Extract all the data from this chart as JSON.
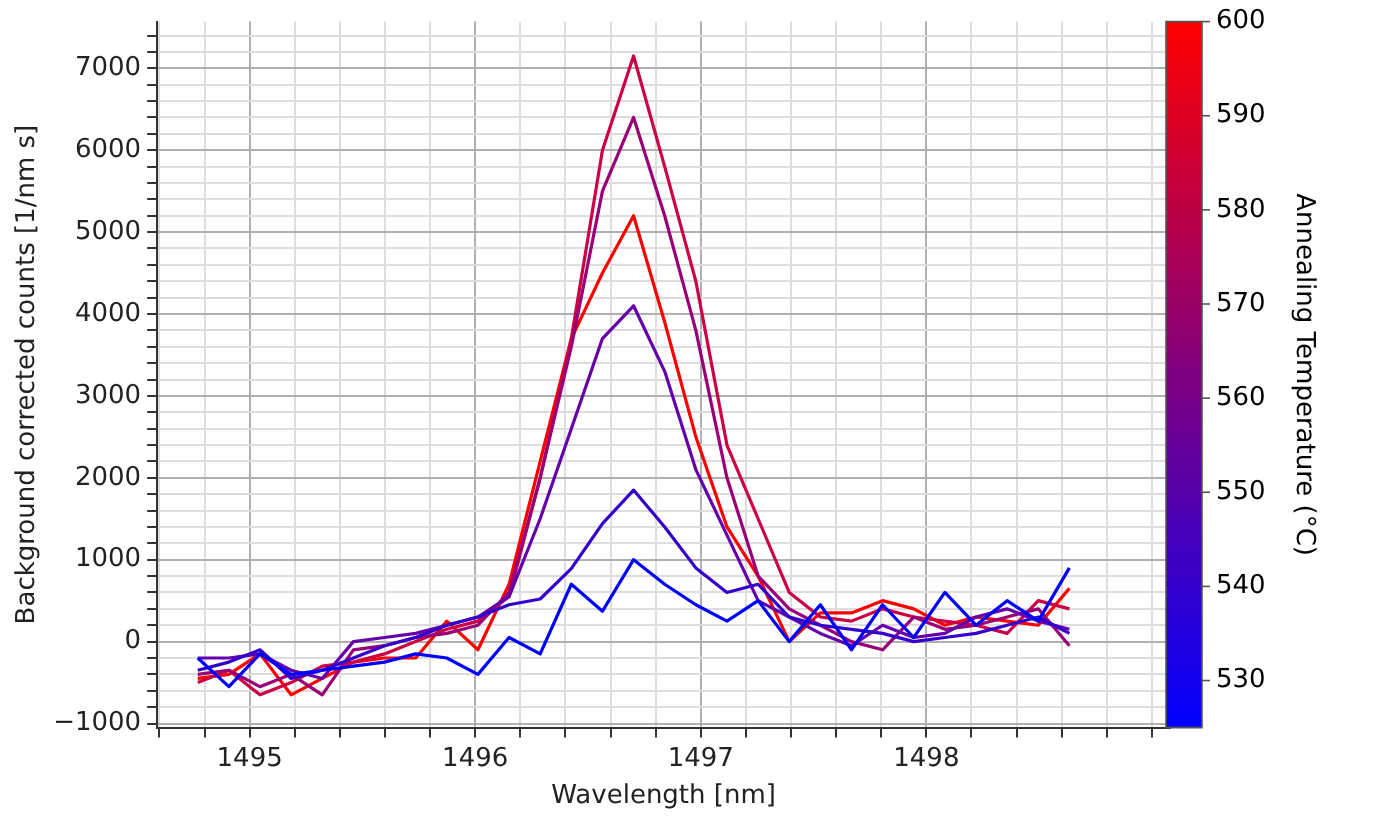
{
  "chart_data": {
    "type": "line",
    "xlabel": "Wavelength [nm]",
    "ylabel": "Background corrected counts [1/nm s]",
    "clabel": "Annealing Temperature (°C)",
    "x": [
      1494.77,
      1494.908,
      1495.046,
      1495.184,
      1495.322,
      1495.46,
      1495.598,
      1495.736,
      1495.874,
      1496.012,
      1496.15,
      1496.288,
      1496.426,
      1496.564,
      1496.702,
      1496.84,
      1496.978,
      1497.116,
      1497.254,
      1497.392,
      1497.53,
      1497.668,
      1497.806,
      1497.944,
      1498.082,
      1498.22,
      1498.358,
      1498.496,
      1498.634
    ],
    "series": [
      {
        "color": "#0000ff",
        "values": [
          -200,
          -550,
          -150,
          -400,
          -350,
          -300,
          -250,
          -150,
          -200,
          -400,
          50,
          -150,
          700,
          370,
          1000,
          700,
          450,
          250,
          500,
          0,
          450,
          -100,
          450,
          50,
          600,
          200,
          500,
          250,
          900
        ]
      },
      {
        "color": "#3300cc",
        "values": [
          -350,
          -250,
          -100,
          -450,
          -350,
          -200,
          -50,
          50,
          200,
          300,
          450,
          520,
          890,
          1440,
          1850,
          1400,
          900,
          600,
          700,
          300,
          200,
          150,
          100,
          0,
          50,
          100,
          200,
          300,
          100
        ]
      },
      {
        "color": "#6600aa",
        "values": [
          -200,
          -200,
          -150,
          -350,
          -450,
          0,
          50,
          100,
          200,
          300,
          550,
          1500,
          2600,
          3700,
          4100,
          3300,
          2100,
          1300,
          500,
          300,
          100,
          -50,
          200,
          50,
          100,
          300,
          400,
          250,
          150
        ]
      },
      {
        "color": "#990077",
        "values": [
          -400,
          -350,
          -550,
          -400,
          -650,
          -100,
          -50,
          50,
          100,
          200,
          600,
          2000,
          3600,
          5500,
          6400,
          5200,
          3800,
          2000,
          800,
          400,
          200,
          0,
          -100,
          300,
          150,
          200,
          300,
          400,
          -50
        ]
      },
      {
        "color": "#cc0044",
        "values": [
          -500,
          -350,
          -650,
          -500,
          -300,
          -250,
          -150,
          0,
          150,
          250,
          550,
          2000,
          3700,
          6000,
          7150,
          5800,
          4400,
          2400,
          1500,
          600,
          300,
          250,
          400,
          300,
          250,
          200,
          100,
          500,
          400
        ]
      },
      {
        "color": "#ff0000",
        "values": [
          -450,
          -400,
          -150,
          -650,
          -450,
          -250,
          -200,
          -200,
          250,
          -100,
          700,
          2200,
          3700,
          4500,
          5200,
          3900,
          2500,
          1400,
          800,
          0,
          350,
          350,
          500,
          400,
          200,
          300,
          250,
          200,
          650
        ]
      }
    ],
    "xlim": [
      1494.59,
      1499.08
    ],
    "xticks": [
      {
        "value": 1494.6,
        "label": null
      },
      {
        "value": 1494.8,
        "label": null
      },
      1495,
      {
        "value": 1495.2,
        "label": null
      },
      {
        "value": 1495.4,
        "label": null
      },
      {
        "value": 1495.6,
        "label": null
      },
      {
        "value": 1495.8,
        "label": null
      },
      1496,
      {
        "value": 1496.2,
        "label": null
      },
      {
        "value": 1496.4,
        "label": null
      },
      {
        "value": 1496.6,
        "label": null
      },
      {
        "value": 1496.8,
        "label": null
      },
      1497,
      {
        "value": 1497.2,
        "label": null
      },
      {
        "value": 1497.4,
        "label": null
      },
      {
        "value": 1497.6,
        "label": null
      },
      {
        "value": 1497.8,
        "label": null
      },
      1498,
      {
        "value": 1498.2,
        "label": null
      },
      {
        "value": 1498.4,
        "label": null
      },
      {
        "value": 1498.6,
        "label": null
      },
      {
        "value": 1498.8,
        "label": null
      },
      {
        "value": 1499,
        "label": null
      }
    ],
    "ylim": [
      -1050,
      7570
    ],
    "yticks": [
      {
        "value": -1000,
        "label": "−1000"
      },
      {
        "value": -800,
        "label": null
      },
      {
        "value": -600,
        "label": null
      },
      {
        "value": -400,
        "label": null
      },
      {
        "value": -200,
        "label": null
      },
      0,
      {
        "value": 200,
        "label": null
      },
      {
        "value": 400,
        "label": null
      },
      {
        "value": 600,
        "label": null
      },
      {
        "value": 800,
        "label": null
      },
      1000,
      {
        "value": 1200,
        "label": null
      },
      {
        "value": 1400,
        "label": null
      },
      {
        "value": 1600,
        "label": null
      },
      {
        "value": 1800,
        "label": null
      },
      2000,
      {
        "value": 2200,
        "label": null
      },
      {
        "value": 2400,
        "label": null
      },
      {
        "value": 2600,
        "label": null
      },
      {
        "value": 2800,
        "label": null
      },
      3000,
      {
        "value": 3200,
        "label": null
      },
      {
        "value": 3400,
        "label": null
      },
      {
        "value": 3600,
        "label": null
      },
      {
        "value": 3800,
        "label": null
      },
      4000,
      {
        "value": 4200,
        "label": null
      },
      {
        "value": 4400,
        "label": null
      },
      {
        "value": 4600,
        "label": null
      },
      {
        "value": 4800,
        "label": null
      },
      5000,
      {
        "value": 5200,
        "label": null
      },
      {
        "value": 5400,
        "label": null
      },
      {
        "value": 5600,
        "label": null
      },
      {
        "value": 5800,
        "label": null
      },
      6000,
      {
        "value": 6200,
        "label": null
      },
      {
        "value": 6400,
        "label": null
      },
      {
        "value": 6600,
        "label": null
      },
      {
        "value": 6800,
        "label": null
      },
      7000,
      {
        "value": 7200,
        "label": null
      },
      {
        "value": 7400,
        "label": null
      }
    ],
    "clim": [
      525,
      600
    ],
    "cticks": [
      530,
      540,
      550,
      560,
      570,
      580,
      590,
      600
    ],
    "grid": true,
    "marker": "none",
    "line_style": "solid"
  }
}
